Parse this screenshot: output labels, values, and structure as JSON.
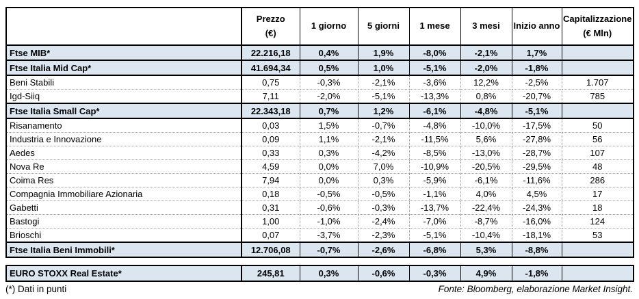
{
  "colors": {
    "index_row_bg": "#dce6f1",
    "border": "#000000",
    "dotted_border": "#9a9a9a"
  },
  "table": {
    "columns": [
      {
        "id": "name",
        "label": ""
      },
      {
        "id": "prezzo",
        "label": "Prezzo\n(€)"
      },
      {
        "id": "1-giorno",
        "label": "1 giorno"
      },
      {
        "id": "5-giorni",
        "label": "5 giorni"
      },
      {
        "id": "1-mese",
        "label": "1 mese"
      },
      {
        "id": "3-mesi",
        "label": "3 mesi"
      },
      {
        "id": "inizio-anno",
        "label": "Inizio anno"
      },
      {
        "id": "capitalizzazione",
        "label": "Capitalizzazione\n(€ Mln)"
      }
    ],
    "rows": [
      {
        "type": "index",
        "name": "Ftse MIB*",
        "values": [
          "22.216,18",
          "0,4%",
          "1,9%",
          "-8,0%",
          "-2,1%",
          "1,7%",
          ""
        ]
      },
      {
        "type": "index",
        "name": "Ftse Italia Mid Cap*",
        "values": [
          "41.694,34",
          "0,5%",
          "1,0%",
          "-5,1%",
          "-2,0%",
          "-1,8%",
          ""
        ]
      },
      {
        "type": "company",
        "name": "Beni Stabili",
        "values": [
          "0,75",
          "-0,3%",
          "-2,1%",
          "-3,6%",
          "12,2%",
          "-2,5%",
          "1.707"
        ]
      },
      {
        "type": "company",
        "name": "Igd-Siiq",
        "values": [
          "7,11",
          "-2,0%",
          "-5,1%",
          "-13,3%",
          "0,8%",
          "-20,7%",
          "785"
        ]
      },
      {
        "type": "index",
        "name": "Ftse Italia Small Cap*",
        "values": [
          "22.343,18",
          "0,7%",
          "1,2%",
          "-6,1%",
          "-4,8%",
          "-5,1%",
          ""
        ]
      },
      {
        "type": "company",
        "name": "Risanamento",
        "values": [
          "0,03",
          "1,5%",
          "-0,7%",
          "-4,8%",
          "-10,0%",
          "-17,5%",
          "50"
        ]
      },
      {
        "type": "company",
        "name": "Industria e Innovazione",
        "values": [
          "0,09",
          "1,1%",
          "-2,1%",
          "-11,5%",
          "5,6%",
          "-27,8%",
          "56"
        ]
      },
      {
        "type": "company",
        "name": "Aedes",
        "values": [
          "0,33",
          "0,3%",
          "-4,2%",
          "-8,5%",
          "-13,0%",
          "-28,7%",
          "107"
        ]
      },
      {
        "type": "company",
        "name": "Nova Re",
        "values": [
          "4,59",
          "0,0%",
          "7,0%",
          "-10,9%",
          "-20,5%",
          "-29,5%",
          "48"
        ]
      },
      {
        "type": "company",
        "name": "Coima Res",
        "values": [
          "7,94",
          "0,0%",
          "0,3%",
          "-5,9%",
          "-6,1%",
          "-11,6%",
          "286"
        ]
      },
      {
        "type": "company",
        "name": "Compagnia Immobiliare Azionaria",
        "values": [
          "0,18",
          "-0,5%",
          "-0,5%",
          "-1,1%",
          "4,0%",
          "4,5%",
          "17"
        ]
      },
      {
        "type": "company",
        "name": "Gabetti",
        "values": [
          "0,31",
          "-0,6%",
          "-0,3%",
          "-13,7%",
          "-22,4%",
          "-24,3%",
          "18"
        ]
      },
      {
        "type": "company",
        "name": "Bastogi",
        "values": [
          "1,00",
          "-1,0%",
          "-2,4%",
          "-7,0%",
          "-8,7%",
          "-16,0%",
          "124"
        ]
      },
      {
        "type": "company",
        "name": "Brioschi",
        "values": [
          "0,07",
          "-3,7%",
          "-2,3%",
          "-5,1%",
          "-10,4%",
          "-18,1%",
          "53"
        ]
      },
      {
        "type": "index",
        "name": "Ftse Italia Beni Immobili*",
        "values": [
          "12.706,08",
          "-0,7%",
          "-2,6%",
          "-6,8%",
          "5,3%",
          "-8,8%",
          ""
        ]
      }
    ]
  },
  "euro_table": {
    "rows": [
      {
        "type": "index",
        "name": "EURO STOXX Real Estate*",
        "values": [
          "245,81",
          "0,3%",
          "-0,6%",
          "-0,3%",
          "4,9%",
          "-1,8%",
          ""
        ]
      }
    ]
  },
  "footer": {
    "note": "(*) Dati in punti",
    "source": "Fonte: Bloomberg, elaborazione Market Insight."
  }
}
